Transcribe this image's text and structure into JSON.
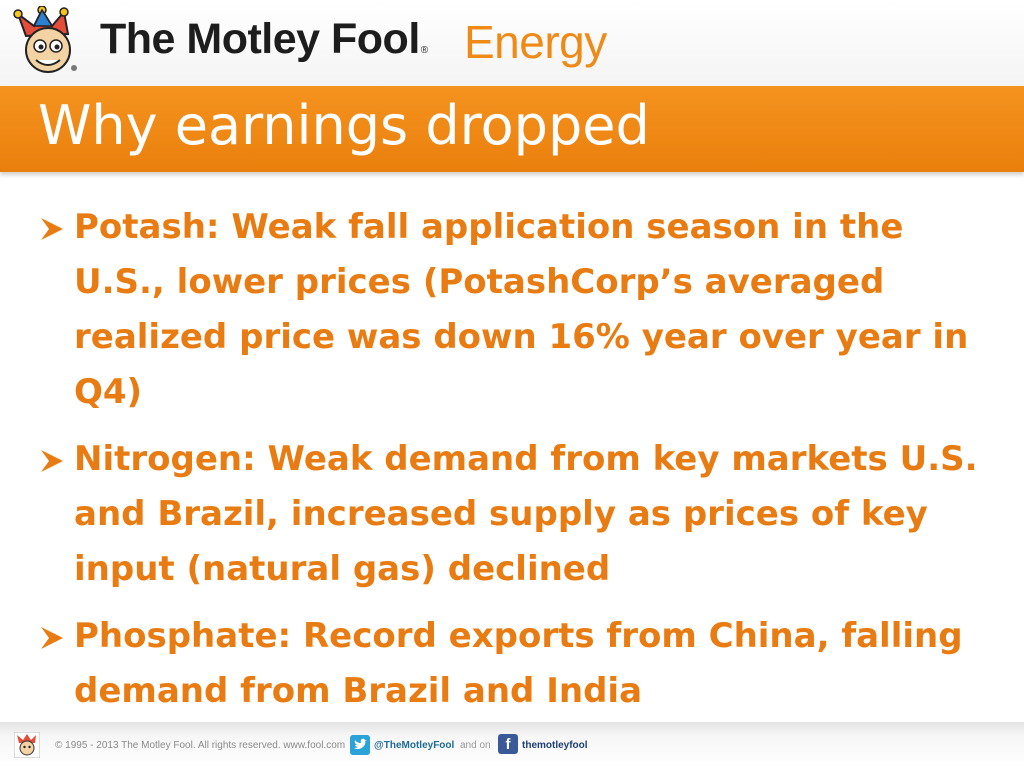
{
  "header": {
    "brand_name": "The Motley Fool",
    "brand_reg": "®",
    "brand_section": "Energy",
    "logo_icon": "jester-logo-icon"
  },
  "slide": {
    "title": "Why earnings dropped",
    "bullets": [
      "Potash: Weak fall application season in the U.S., lower prices (PotashCorp’s averaged realized price was down 16% year over year in Q4)",
      "Nitrogen: Weak demand from key markets U.S. and Brazil, increased supply as prices of key input (natural gas) declined",
      "Phosphate: Record exports from China, falling demand from Brazil and India"
    ]
  },
  "footer": {
    "copyright": "© 1995 - 2013 The Motley Fool. All rights reserved. www.fool.com",
    "twitter_handle": "@TheMotleyFool",
    "and_on": "and on",
    "facebook_glyph": "f",
    "facebook_handle": "themotleyfool"
  },
  "colors": {
    "accent_orange": "#ef8a17",
    "bullet_text": "#e87c12",
    "title_bar": "#f08718",
    "twitter_blue": "#2ba2d8",
    "facebook_blue": "#3b5998"
  }
}
